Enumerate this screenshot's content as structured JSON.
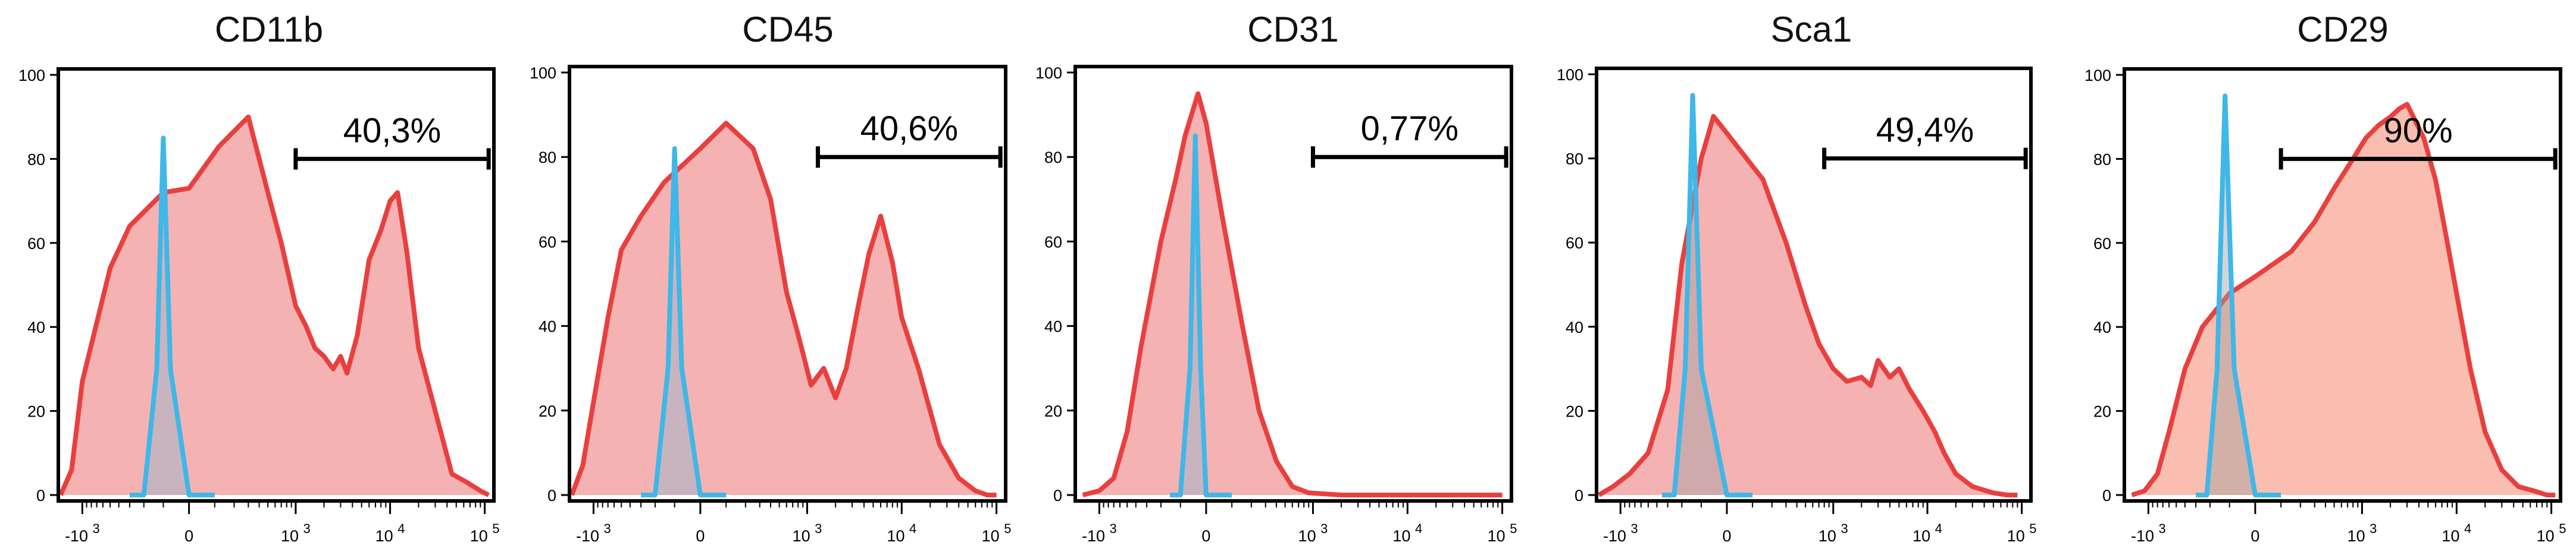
{
  "chart_data": [
    {
      "type": "area",
      "title": "CD11b",
      "gate_label": "40,3%",
      "gate_range": [
        1000,
        110000
      ],
      "ylim": [
        0,
        100
      ],
      "yticks": [
        0,
        20,
        40,
        60,
        80,
        100
      ],
      "xticks": [
        "-10 3",
        "0",
        "10 3",
        "10 4",
        "10 5"
      ],
      "series": [
        {
          "color": "#e8403f",
          "fill": "#f4b3b2",
          "x": [
            -1700,
            -1300,
            -1000,
            -700,
            -500,
            -300,
            -100,
            0,
            120,
            300,
            500,
            700,
            1000,
            1300,
            1600,
            2000,
            2500,
            3000,
            3500,
            4500,
            6000,
            8000,
            10000,
            12000,
            15000,
            20000,
            30000,
            45000,
            65000,
            90000,
            110000
          ],
          "y": [
            0,
            6,
            27,
            41,
            54,
            64,
            72,
            73,
            83,
            90,
            72,
            60,
            45,
            40,
            35,
            33,
            30,
            33,
            29,
            38,
            56,
            63,
            70,
            72,
            58,
            35,
            20,
            5,
            3,
            1,
            0
          ]
        },
        {
          "color": "#3fb7e8",
          "fill": "rgba(63,183,232,0.25)",
          "x": [
            -300,
            -200,
            -130,
            -100,
            -70,
            0,
            60,
            100
          ],
          "y": [
            0,
            0,
            30,
            85,
            30,
            0,
            0,
            0
          ]
        }
      ]
    },
    {
      "type": "area",
      "title": "CD45",
      "gate_label": "40,6%",
      "gate_range": [
        1300,
        110000
      ],
      "ylim": [
        0,
        100
      ],
      "yticks": [
        0,
        20,
        40,
        60,
        80,
        100
      ],
      "xticks": [
        "-10 3",
        "0",
        "10 3",
        "10 4",
        "10 5"
      ],
      "series": [
        {
          "color": "#e8403f",
          "fill": "#f4b3b2",
          "x": [
            -1700,
            -1300,
            -1000,
            -700,
            -500,
            -300,
            -150,
            0,
            100,
            250,
            400,
            600,
            800,
            1100,
            1500,
            2000,
            2600,
            3500,
            4500,
            6000,
            8000,
            10000,
            15000,
            25000,
            40000,
            60000,
            80000,
            100000
          ],
          "y": [
            0,
            7,
            22,
            42,
            58,
            66,
            74,
            82,
            88,
            82,
            70,
            48,
            38,
            26,
            30,
            23,
            30,
            45,
            57,
            66,
            55,
            42,
            30,
            12,
            4,
            1,
            0,
            0
          ]
        },
        {
          "color": "#3fb7e8",
          "fill": "rgba(63,183,232,0.25)",
          "x": [
            -300,
            -200,
            -130,
            -100,
            -70,
            0,
            60,
            100
          ],
          "y": [
            0,
            0,
            30,
            82,
            30,
            0,
            0,
            0
          ]
        }
      ]
    },
    {
      "type": "area",
      "title": "CD31",
      "gate_label": "0,77%",
      "gate_range": [
        1000,
        110000
      ],
      "ylim": [
        0,
        100
      ],
      "yticks": [
        0,
        20,
        40,
        60,
        80,
        100
      ],
      "xticks": [
        "-10 3",
        "0",
        "10 3",
        "10 4",
        "10 5"
      ],
      "series": [
        {
          "color": "#e8403f",
          "fill": "#f4b3b2",
          "x": [
            -1500,
            -1000,
            -700,
            -500,
            -350,
            -200,
            -120,
            -80,
            -30,
            0,
            60,
            150,
            250,
            400,
            600,
            900,
            2000,
            10000,
            100000
          ],
          "y": [
            0,
            1,
            4,
            15,
            35,
            60,
            75,
            85,
            95,
            88,
            66,
            40,
            20,
            8,
            2,
            0.5,
            0,
            0,
            0
          ]
        },
        {
          "color": "#3fb7e8",
          "fill": "rgba(63,183,232,0.25)",
          "x": [
            -150,
            -100,
            -60,
            -40,
            -20,
            0,
            40,
            100
          ],
          "y": [
            0,
            0,
            30,
            85,
            30,
            0,
            0,
            0
          ]
        }
      ]
    },
    {
      "type": "area",
      "title": "Sca1",
      "gate_label": "49,4%",
      "gate_range": [
        800,
        110000
      ],
      "ylim": [
        0,
        100
      ],
      "yticks": [
        0,
        20,
        40,
        60,
        80,
        100
      ],
      "xticks": [
        "-10 3",
        "0",
        "10 3",
        "10 4",
        "10 5"
      ],
      "series": [
        {
          "color": "#e8403f",
          "fill": "#f4b3b2",
          "x": [
            -1700,
            -1200,
            -800,
            -500,
            -300,
            -200,
            -100,
            -50,
            0,
            150,
            300,
            500,
            700,
            1000,
            1400,
            2000,
            2500,
            3000,
            4000,
            5000,
            6500,
            9000,
            12000,
            15000,
            20000,
            30000,
            50000,
            70000,
            90000
          ],
          "y": [
            0,
            2,
            5,
            10,
            25,
            55,
            80,
            90,
            86,
            75,
            60,
            45,
            36,
            30,
            27,
            28,
            26,
            32,
            28,
            30,
            25,
            20,
            15,
            10,
            5,
            2,
            0.5,
            0,
            0
          ]
        },
        {
          "color": "#3fb7e8",
          "fill": "rgba(160,160,160,0.45)",
          "x": [
            -350,
            -250,
            -180,
            -140,
            -100,
            0,
            60,
            100
          ],
          "y": [
            0,
            0,
            30,
            95,
            30,
            0,
            0,
            0
          ]
        }
      ]
    },
    {
      "type": "area",
      "title": "CD29",
      "gate_label": "90%",
      "gate_range": [
        100,
        110000
      ],
      "ylim": [
        0,
        100
      ],
      "yticks": [
        0,
        20,
        40,
        60,
        80,
        100
      ],
      "xticks": [
        "-10 3",
        "0",
        "10 3",
        "10 4",
        "10 5"
      ],
      "series": [
        {
          "color": "#e8403f",
          "fill": "#f9beaf",
          "x": [
            -1500,
            -1100,
            -800,
            -600,
            -400,
            -250,
            -100,
            0,
            150,
            300,
            500,
            800,
            1100,
            1500,
            2000,
            2500,
            3000,
            3500,
            4500,
            6000,
            8000,
            10000,
            14000,
            20000,
            30000,
            45000,
            65000,
            90000,
            110000
          ],
          "y": [
            0,
            1,
            5,
            15,
            30,
            40,
            48,
            52,
            58,
            65,
            73,
            80,
            85,
            88,
            90,
            92,
            93,
            90,
            85,
            75,
            60,
            48,
            30,
            15,
            6,
            2,
            1,
            0,
            0
          ]
        },
        {
          "color": "#3fb7e8",
          "fill": "rgba(160,160,160,0.45)",
          "x": [
            -300,
            -220,
            -160,
            -120,
            -80,
            0,
            60,
            100
          ],
          "y": [
            0,
            0,
            30,
            95,
            30,
            0,
            0,
            0
          ]
        }
      ]
    }
  ]
}
